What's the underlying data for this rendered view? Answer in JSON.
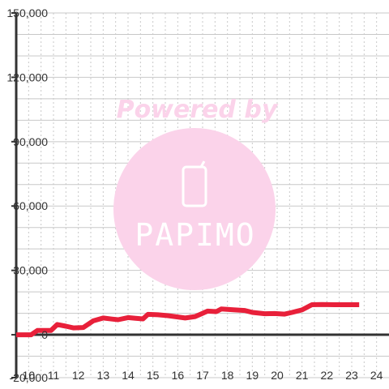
{
  "chart_data": {
    "type": "line",
    "title": "",
    "xlabel": "",
    "ylabel": "",
    "x_range": [
      9.5,
      24.5
    ],
    "ylim": [
      -20000,
      150000
    ],
    "y_ticks": [
      {
        "value": 150000,
        "label": "150,000"
      },
      {
        "value": 120000,
        "label": "120,000"
      },
      {
        "value": 90000,
        "label": "90,000"
      },
      {
        "value": 60000,
        "label": "60,000"
      },
      {
        "value": 30000,
        "label": "30,000"
      },
      {
        "value": 0,
        "label": "0"
      },
      {
        "value": -20000,
        "label": "-20,000"
      }
    ],
    "y_grid_step": 10000,
    "x_ticks": [
      {
        "value": 10,
        "label": "10"
      },
      {
        "value": 11,
        "label": "11"
      },
      {
        "value": 12,
        "label": "12"
      },
      {
        "value": 13,
        "label": "13"
      },
      {
        "value": 14,
        "label": "14"
      },
      {
        "value": 15,
        "label": "15"
      },
      {
        "value": 16,
        "label": "16"
      },
      {
        "value": 17,
        "label": "17"
      },
      {
        "value": 18,
        "label": "18"
      },
      {
        "value": 19,
        "label": "19"
      },
      {
        "value": 20,
        "label": "20"
      },
      {
        "value": 21,
        "label": "21"
      },
      {
        "value": 22,
        "label": "22"
      },
      {
        "value": 23,
        "label": "23"
      },
      {
        "value": 24,
        "label": "24"
      }
    ],
    "x_grid_minor_step": 0.5,
    "grid": true,
    "series": [
      {
        "color": "#e8203a",
        "points": [
          [
            9.5,
            0
          ],
          [
            10.1,
            0
          ],
          [
            10.35,
            2000
          ],
          [
            10.9,
            2000
          ],
          [
            11.15,
            4800
          ],
          [
            11.5,
            4000
          ],
          [
            11.8,
            3200
          ],
          [
            12.2,
            3400
          ],
          [
            12.6,
            6500
          ],
          [
            13.0,
            7800
          ],
          [
            13.35,
            7300
          ],
          [
            13.6,
            7000
          ],
          [
            14.0,
            8000
          ],
          [
            14.3,
            7700
          ],
          [
            14.6,
            7400
          ],
          [
            14.8,
            9500
          ],
          [
            15.2,
            9300
          ],
          [
            15.6,
            8900
          ],
          [
            16.0,
            8300
          ],
          [
            16.3,
            7800
          ],
          [
            16.7,
            8500
          ],
          [
            17.0,
            10000
          ],
          [
            17.2,
            11000
          ],
          [
            17.55,
            10800
          ],
          [
            17.75,
            12000
          ],
          [
            18.3,
            11600
          ],
          [
            18.7,
            11300
          ],
          [
            19.0,
            10400
          ],
          [
            19.5,
            9800
          ],
          [
            19.9,
            9900
          ],
          [
            20.3,
            9600
          ],
          [
            20.6,
            10400
          ],
          [
            21.0,
            11600
          ],
          [
            21.4,
            14000
          ],
          [
            21.8,
            14100
          ],
          [
            22.3,
            14000
          ],
          [
            22.8,
            14000
          ],
          [
            23.3,
            14000
          ]
        ]
      }
    ]
  },
  "watermark": {
    "line1": "Powered by",
    "word": "PAPIMO",
    "color": "#fbd3ea"
  }
}
